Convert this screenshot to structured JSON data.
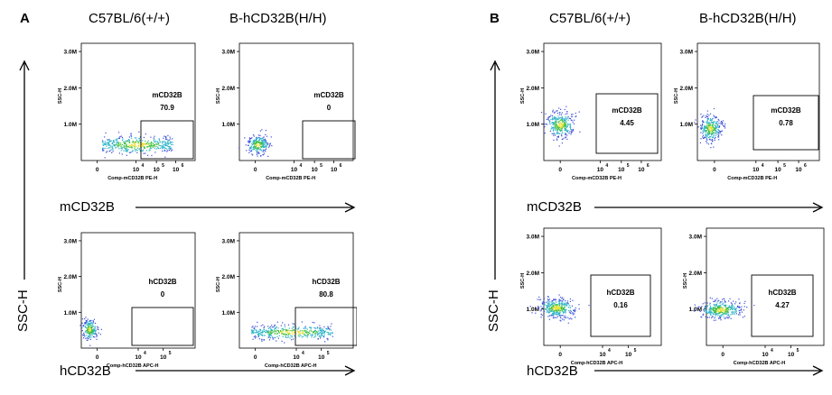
{
  "panels": [
    {
      "letter": "A",
      "col_titles": [
        "C57BL/6(+/+)",
        "B-hCD32B(H/H)"
      ],
      "y_axis_label": "SSC-H",
      "row_labels": [
        "mCD32B",
        "hCD32B"
      ]
    },
    {
      "letter": "B",
      "col_titles": [
        "C57BL/6(+/+)",
        "B-hCD32B(H/H)"
      ],
      "y_axis_label": "SSC-H",
      "row_labels": [
        "mCD32B",
        "hCD32B"
      ]
    }
  ],
  "chart_data": [
    {
      "type": "scatter",
      "panel": "A",
      "sample": "C57BL/6(+/+)",
      "title": "",
      "xlabel": "Comp-mCD32B PE-H",
      "ylabel": "SSC-H",
      "y_ticks": [
        "3.0M",
        "2.0M",
        "1.0M"
      ],
      "x_ticks": [
        "0",
        "10^4",
        "10^5",
        "10^6"
      ],
      "gate": {
        "name": "mCD32B",
        "value": "70.9"
      },
      "cloud": "spread across gate"
    },
    {
      "type": "scatter",
      "panel": "A",
      "sample": "B-hCD32B(H/H)",
      "title": "",
      "xlabel": "Comp-mCD32B PE-H",
      "ylabel": "SSC-H",
      "y_ticks": [
        "3.0M",
        "2.0M",
        "1.0M"
      ],
      "x_ticks": [
        "0",
        "10^4",
        "10^5",
        "10^6"
      ],
      "gate": {
        "name": "mCD32B",
        "value": "0"
      },
      "cloud": "negative"
    },
    {
      "type": "scatter",
      "panel": "A",
      "sample": "C57BL/6(+/+)",
      "title": "",
      "xlabel": "Comp-hCD32B APC-H",
      "ylabel": "SSC-H",
      "y_ticks": [
        "3.0M",
        "2.0M",
        "1.0M"
      ],
      "x_ticks": [
        "0",
        "10^4",
        "10^5"
      ],
      "gate": {
        "name": "hCD32B",
        "value": "0"
      },
      "cloud": "negative"
    },
    {
      "type": "scatter",
      "panel": "A",
      "sample": "B-hCD32B(H/H)",
      "title": "",
      "xlabel": "Comp-hCD32B APC-H",
      "ylabel": "SSC-H",
      "y_ticks": [
        "3.0M",
        "2.0M",
        "1.0M"
      ],
      "x_ticks": [
        "0",
        "10^4",
        "10^5"
      ],
      "gate": {
        "name": "hCD32B",
        "value": "80.8"
      },
      "cloud": "spread across gate"
    },
    {
      "type": "scatter",
      "panel": "B",
      "sample": "C57BL/6(+/+)",
      "title": "",
      "xlabel": "Comp-mCD32B PE-H",
      "ylabel": "SSC-H",
      "y_ticks": [
        "3.0M",
        "2.0M",
        "1.0M"
      ],
      "x_ticks": [
        "0",
        "10^4",
        "10^5",
        "10^6"
      ],
      "gate": {
        "name": "mCD32B",
        "value": "4.45"
      },
      "cloud": "negative"
    },
    {
      "type": "scatter",
      "panel": "B",
      "sample": "B-hCD32B(H/H)",
      "title": "",
      "xlabel": "Comp-mCD32B PE-H",
      "ylabel": "SSC-H",
      "y_ticks": [
        "3.0M",
        "2.0M",
        "1.0M"
      ],
      "x_ticks": [
        "0",
        "10^4",
        "10^5",
        "10^6"
      ],
      "gate": {
        "name": "mCD32B",
        "value": "0.78"
      },
      "cloud": "negative"
    },
    {
      "type": "scatter",
      "panel": "B",
      "sample": "C57BL/6(+/+)",
      "title": "",
      "xlabel": "Comp-hCD32B APC-H",
      "ylabel": "SSC-H",
      "y_ticks": [
        "3.0M",
        "2.0M",
        "1.0M"
      ],
      "x_ticks": [
        "0",
        "10^4",
        "10^5"
      ],
      "gate": {
        "name": "hCD32B",
        "value": "0.16"
      },
      "cloud": "negative"
    },
    {
      "type": "scatter",
      "panel": "B",
      "sample": "B-hCD32B(H/H)",
      "title": "",
      "xlabel": "Comp-hCD32B APC-H",
      "ylabel": "SSC-H",
      "y_ticks": [
        "3.0M",
        "2.0M",
        "1.0M"
      ],
      "x_ticks": [
        "0",
        "10^4",
        "10^5"
      ],
      "gate": {
        "name": "hCD32B",
        "value": "4.27"
      },
      "cloud": "negative"
    }
  ],
  "colors": {
    "dots_outer": "#3a4fd8",
    "dots_mid": "#2fb5c8",
    "dots_core": "#3fbf3f",
    "dots_hot": "#e8e030",
    "axis": "#000000"
  }
}
